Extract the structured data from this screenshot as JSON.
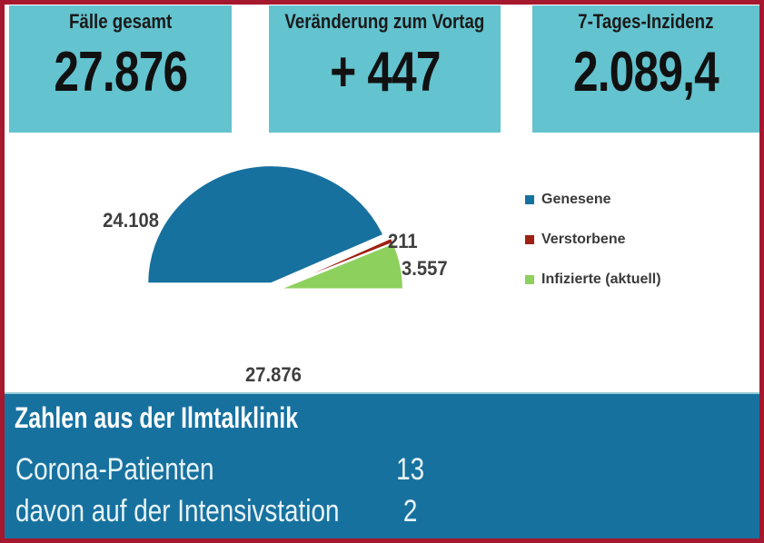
{
  "stat_cards": [
    {
      "title": "Fälle gesamt",
      "value": "27.876"
    },
    {
      "title": "Veränderung zum Vortag",
      "value": "+ 447"
    },
    {
      "title": "7-Tages-Inzidenz",
      "value": "2.089,4"
    }
  ],
  "chart_data": {
    "type": "pie",
    "variant": "exploded half-pie (semicircle, 180° sweep)",
    "categories": [
      "Genesene",
      "Verstorbene",
      "Infizierte (aktuell)"
    ],
    "values": [
      24108,
      211,
      3557
    ],
    "labels": [
      "24.108",
      "211",
      "3.557"
    ],
    "total": 27876,
    "total_label": "27.876",
    "colors": [
      "#17719f",
      "#9e2114",
      "#8ed05e"
    ],
    "legend_position": "right",
    "start_angle_deg": 180,
    "end_angle_deg": 0
  },
  "clinic_panel": {
    "title": "Zahlen aus der Ilmtalklinik",
    "rows": [
      {
        "label": "Corona-Patienten",
        "value": "13"
      },
      {
        "label": "davon auf der Intensivstation",
        "value": "2"
      }
    ]
  },
  "colors": {
    "card_background": "#63c3cf",
    "band_background": "#17719f",
    "page_border": "#a5182e",
    "data_label_text": "#3f3f3f"
  }
}
